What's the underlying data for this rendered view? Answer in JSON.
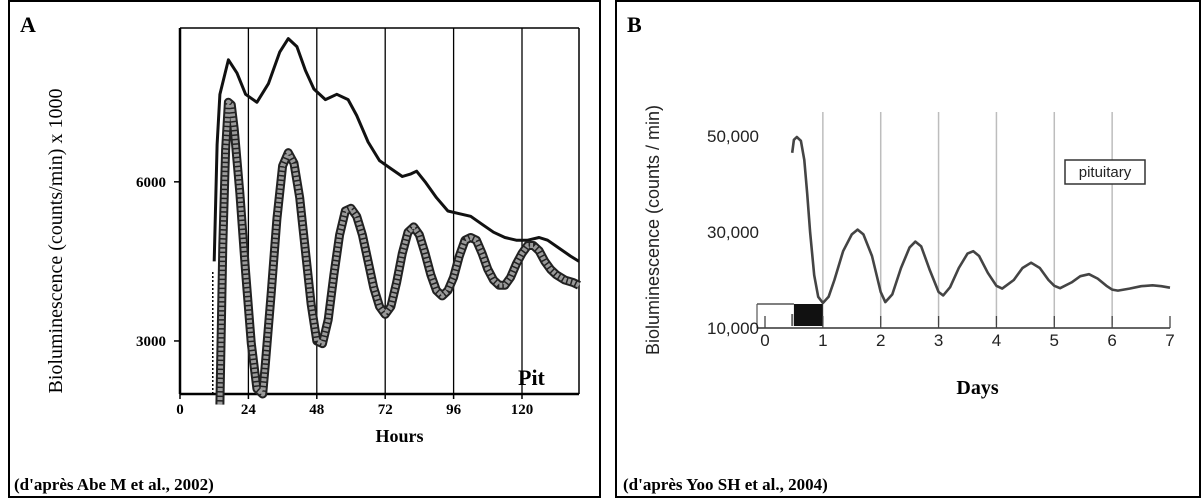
{
  "chart_data": [
    {
      "type": "line",
      "panel_letter": "A",
      "credit": "(d'après Abe M et al., 2002)",
      "xlabel": "Hours",
      "ylabel": "Bioluminescence (counts/min) x 1000",
      "annotation": "Pit",
      "xlim": [
        0,
        140
      ],
      "ylim": [
        2000,
        8900
      ],
      "x_ticks": [
        0,
        24,
        48,
        72,
        96,
        120
      ],
      "y_ticks": [
        3000,
        6000
      ],
      "vertical_grid": [
        24,
        48,
        72,
        96,
        120
      ],
      "series": [
        {
          "style": "solid",
          "points": [
            [
              12,
              4500
            ],
            [
              13,
              6700
            ],
            [
              14,
              7650
            ],
            [
              17,
              8300
            ],
            [
              20,
              8050
            ],
            [
              23,
              7650
            ],
            [
              27,
              7500
            ],
            [
              31,
              7850
            ],
            [
              35,
              8450
            ],
            [
              38,
              8700
            ],
            [
              41,
              8550
            ],
            [
              44,
              8100
            ],
            [
              47,
              7750
            ],
            [
              51,
              7550
            ],
            [
              55,
              7650
            ],
            [
              59,
              7550
            ],
            [
              62,
              7250
            ],
            [
              66,
              6750
            ],
            [
              70,
              6400
            ],
            [
              74,
              6250
            ],
            [
              78,
              6100
            ],
            [
              81,
              6150
            ],
            [
              83,
              6200
            ],
            [
              86,
              6000
            ],
            [
              90,
              5700
            ],
            [
              94,
              5450
            ],
            [
              98,
              5400
            ],
            [
              102,
              5350
            ],
            [
              106,
              5200
            ],
            [
              110,
              5050
            ],
            [
              114,
              4950
            ],
            [
              118,
              4900
            ],
            [
              122,
              4900
            ],
            [
              126,
              4950
            ],
            [
              129,
              4900
            ],
            [
              133,
              4750
            ],
            [
              137,
              4600
            ],
            [
              140,
              4500
            ]
          ]
        },
        {
          "style": "squares",
          "points": [
            [
              14,
              1800
            ],
            [
              15,
              4800
            ],
            [
              16,
              6600
            ],
            [
              17,
              7500
            ],
            [
              18,
              7450
            ],
            [
              19,
              7000
            ],
            [
              21,
              5800
            ],
            [
              23,
              4300
            ],
            [
              25,
              2950
            ],
            [
              27,
              2100
            ],
            [
              29,
              2000
            ],
            [
              30,
              2600
            ],
            [
              32,
              3900
            ],
            [
              34,
              5300
            ],
            [
              36,
              6300
            ],
            [
              38,
              6550
            ],
            [
              40,
              6350
            ],
            [
              42,
              5700
            ],
            [
              44,
              4700
            ],
            [
              46,
              3700
            ],
            [
              48,
              3000
            ],
            [
              50,
              2950
            ],
            [
              52,
              3400
            ],
            [
              54,
              4250
            ],
            [
              56,
              5000
            ],
            [
              58,
              5450
            ],
            [
              60,
              5500
            ],
            [
              62,
              5350
            ],
            [
              64,
              5000
            ],
            [
              66,
              4500
            ],
            [
              68,
              4000
            ],
            [
              70,
              3650
            ],
            [
              72,
              3500
            ],
            [
              74,
              3650
            ],
            [
              76,
              4100
            ],
            [
              78,
              4650
            ],
            [
              80,
              5050
            ],
            [
              82,
              5150
            ],
            [
              84,
              5000
            ],
            [
              86,
              4650
            ],
            [
              88,
              4250
            ],
            [
              90,
              3950
            ],
            [
              92,
              3850
            ],
            [
              94,
              3950
            ],
            [
              96,
              4200
            ],
            [
              98,
              4600
            ],
            [
              100,
              4900
            ],
            [
              102,
              4950
            ],
            [
              104,
              4900
            ],
            [
              106,
              4650
            ],
            [
              108,
              4350
            ],
            [
              110,
              4150
            ],
            [
              112,
              4050
            ],
            [
              114,
              4050
            ],
            [
              116,
              4200
            ],
            [
              118,
              4450
            ],
            [
              120,
              4650
            ],
            [
              122,
              4800
            ],
            [
              124,
              4800
            ],
            [
              126,
              4700
            ],
            [
              128,
              4500
            ],
            [
              130,
              4350
            ],
            [
              132,
              4250
            ],
            [
              135,
              4150
            ],
            [
              138,
              4100
            ],
            [
              140,
              4050
            ]
          ]
        }
      ]
    },
    {
      "type": "line",
      "panel_letter": "B",
      "credit": "(d'après Yoo SH et al., 2004)",
      "xlabel": "Days",
      "ylabel": "Bioluminescence (counts / min)",
      "legend": "pituitary",
      "xlim": [
        0,
        7
      ],
      "ylim": [
        10000,
        55000
      ],
      "x_ticks": [
        0,
        1,
        2,
        3,
        4,
        5,
        6,
        7
      ],
      "y_ticks": [
        10000,
        30000,
        50000
      ],
      "y_tick_labels": [
        "10,000",
        "30,000",
        "50,000"
      ],
      "vertical_grid": [
        1,
        2,
        3,
        4,
        5,
        6
      ],
      "dark_bar": [
        0.5,
        1.0
      ],
      "series": [
        {
          "style": "solid",
          "points": [
            [
              0.47,
              46500
            ],
            [
              0.5,
              49200
            ],
            [
              0.55,
              49800
            ],
            [
              0.62,
              49000
            ],
            [
              0.68,
              45000
            ],
            [
              0.73,
              38000
            ],
            [
              0.78,
              30000
            ],
            [
              0.85,
              21000
            ],
            [
              0.92,
              16500
            ],
            [
              1.0,
              15200
            ],
            [
              1.1,
              16500
            ],
            [
              1.2,
              20000
            ],
            [
              1.35,
              26000
            ],
            [
              1.5,
              29500
            ],
            [
              1.6,
              30500
            ],
            [
              1.7,
              29500
            ],
            [
              1.85,
              25000
            ],
            [
              2.0,
              17500
            ],
            [
              2.08,
              15400
            ],
            [
              2.2,
              17000
            ],
            [
              2.35,
              22500
            ],
            [
              2.5,
              26800
            ],
            [
              2.6,
              28000
            ],
            [
              2.7,
              27000
            ],
            [
              2.85,
              22000
            ],
            [
              3.0,
              17500
            ],
            [
              3.08,
              16800
            ],
            [
              3.2,
              18500
            ],
            [
              3.35,
              22500
            ],
            [
              3.5,
              25500
            ],
            [
              3.6,
              26000
            ],
            [
              3.7,
              25000
            ],
            [
              3.85,
              21500
            ],
            [
              4.0,
              18800
            ],
            [
              4.1,
              18200
            ],
            [
              4.3,
              20000
            ],
            [
              4.45,
              22500
            ],
            [
              4.6,
              23600
            ],
            [
              4.75,
              22500
            ],
            [
              4.9,
              20000
            ],
            [
              5.0,
              18800
            ],
            [
              5.1,
              18300
            ],
            [
              5.3,
              19500
            ],
            [
              5.45,
              20800
            ],
            [
              5.6,
              21200
            ],
            [
              5.75,
              20300
            ],
            [
              5.9,
              18800
            ],
            [
              6.0,
              18000
            ],
            [
              6.1,
              17800
            ],
            [
              6.3,
              18200
            ],
            [
              6.5,
              18700
            ],
            [
              6.7,
              18900
            ],
            [
              6.85,
              18700
            ],
            [
              7.0,
              18400
            ]
          ]
        }
      ]
    }
  ]
}
